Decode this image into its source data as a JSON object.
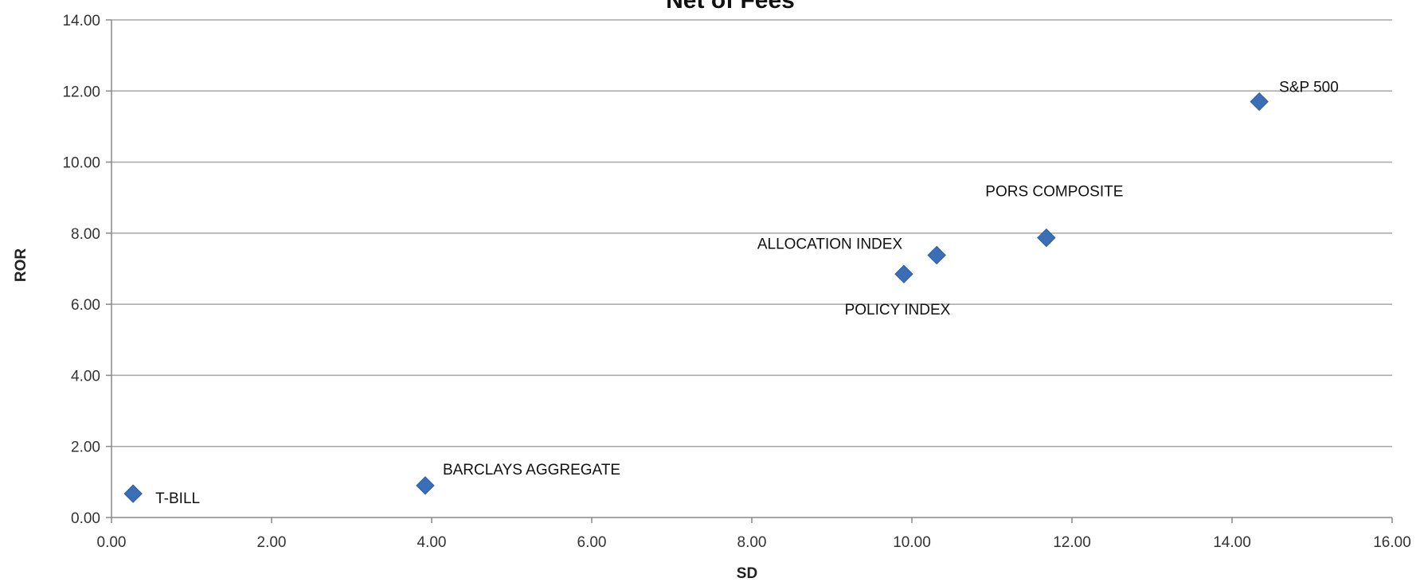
{
  "chart_data": {
    "type": "scatter",
    "title": "Net of Fees",
    "xlabel": "SD",
    "ylabel": "ROR",
    "xlim": [
      0,
      16
    ],
    "ylim": [
      0,
      14
    ],
    "x_ticks": [
      "0.00",
      "2.00",
      "4.00",
      "6.00",
      "8.00",
      "10.00",
      "12.00",
      "14.00",
      "16.00"
    ],
    "y_ticks": [
      "0.00",
      "2.00",
      "4.00",
      "6.00",
      "8.00",
      "10.00",
      "12.00",
      "14.00"
    ],
    "grid": "horizontal",
    "legend": "none",
    "marker": "diamond",
    "marker_color": "#3a6fb8",
    "points": [
      {
        "label": "T-BILL",
        "x": 0.27,
        "y": 0.67
      },
      {
        "label": "BARCLAYS AGGREGATE",
        "x": 3.92,
        "y": 0.9
      },
      {
        "label": "POLICY INDEX",
        "x": 9.9,
        "y": 6.85
      },
      {
        "label": "ALLOCATION INDEX",
        "x": 10.31,
        "y": 7.38
      },
      {
        "label": "PORS COMPOSITE",
        "x": 11.68,
        "y": 7.87
      },
      {
        "label": "S&P 500",
        "x": 14.34,
        "y": 11.7
      }
    ]
  }
}
